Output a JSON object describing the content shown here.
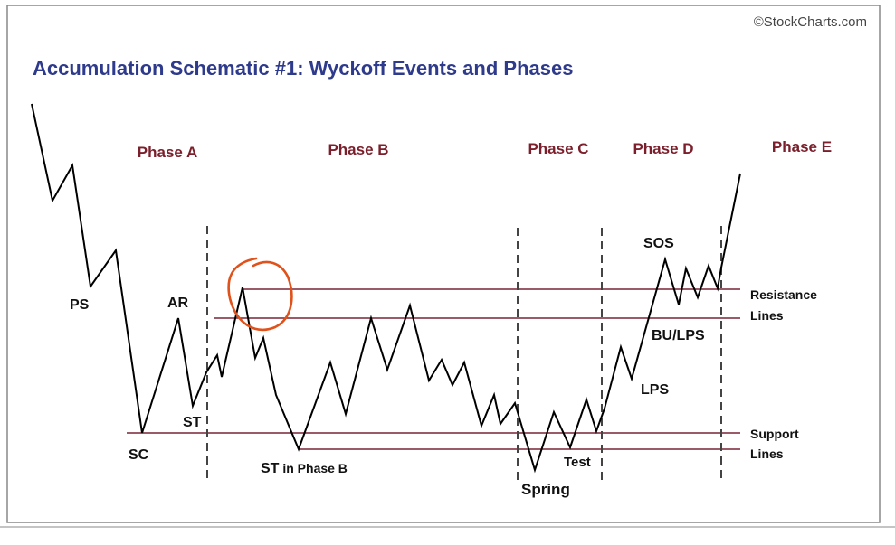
{
  "watermark": "©StockCharts.com",
  "title": "Accumulation Schematic #1: Wyckoff Events and Phases",
  "phases": [
    "Phase A",
    "Phase B",
    "Phase C",
    "Phase D",
    "Phase E"
  ],
  "events": {
    "ps": "PS",
    "sc": "SC",
    "ar": "AR",
    "st": "ST",
    "st_phase_b_main": "ST",
    "st_phase_b_suffix": " in Phase B",
    "spring": "Spring",
    "test": "Test",
    "lps": "LPS",
    "bu_lps": "BU/LPS",
    "sos": "SOS"
  },
  "line_labels": {
    "resistance_1": "Resistance",
    "resistance_2": "Lines",
    "support_1": "Support",
    "support_2": "Lines"
  },
  "colors": {
    "title": "#2e3a8c",
    "phase_label": "#7a1f2b",
    "reference_line": "#7a2436",
    "price_path": "#000000",
    "divider": "#444444",
    "highlight_circle": "#e0521b"
  }
}
